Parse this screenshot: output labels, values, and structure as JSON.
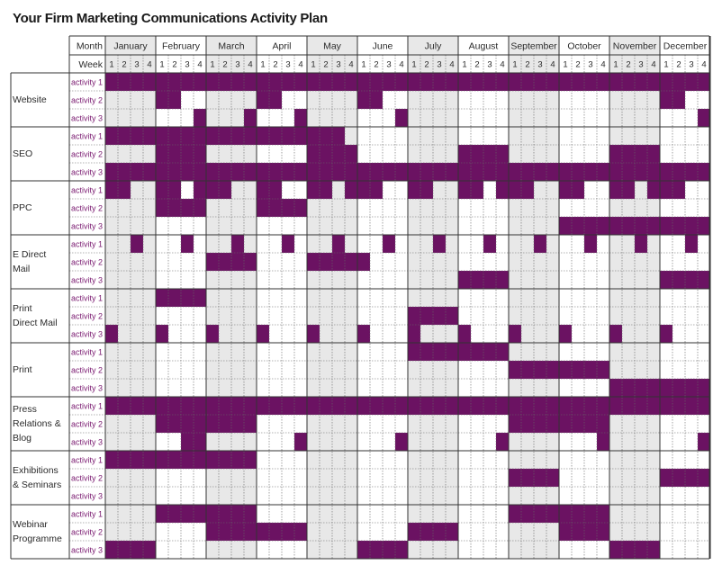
{
  "title": "Your Firm Marketing Communications Activity Plan",
  "header": {
    "month_label": "Month",
    "week_label": "Week",
    "months": [
      "January",
      "February",
      "March",
      "April",
      "May",
      "June",
      "July",
      "August",
      "September",
      "October",
      "November",
      "December"
    ],
    "weeks": [
      "1",
      "2",
      "3",
      "4"
    ]
  },
  "colors": {
    "active": "#6b1262",
    "shaded": "#e8e8e8",
    "plain": "#ffffff",
    "grid": "#666666",
    "text": "#2b2b2b",
    "activity_text": "#7a1a70"
  },
  "activity_label_prefix": "activity",
  "groups": [
    {
      "name": "Website",
      "activities": [
        {
          "label": "1",
          "weeks": "111111111111111111111111111111111111111111111111"
        },
        {
          "label": "2",
          "weeks": "000011000000110000001100000000000000000000001100"
        },
        {
          "label": "3",
          "weeks": "000000010001000100000001000000000000000000000001"
        }
      ]
    },
    {
      "name": "SEO",
      "activities": [
        {
          "label": "1",
          "weeks": "111111111111111111100000000000000000000000000000"
        },
        {
          "label": "2",
          "weeks": "000011110000000011110000000011110000000011110000"
        },
        {
          "label": "3",
          "weeks": "111111111111111111111111111111111111111111111111"
        }
      ]
    },
    {
      "name": "PPC",
      "activities": [
        {
          "label": "1",
          "weeks": "110011011100110011011100110011011100110011011100"
        },
        {
          "label": "2",
          "weeks": "000011110000111100000000000000000000000000000000"
        },
        {
          "label": "3",
          "weeks": "000000000000000000000000000000000000111111111111"
        }
      ]
    },
    {
      "name": "E Direct Mail",
      "activities": [
        {
          "label": "1",
          "weeks": "001000100010001000100010001000100010001000100010"
        },
        {
          "label": "2",
          "weeks": "000000001111000011111000000000000000000000000000"
        },
        {
          "label": "3",
          "weeks": "000000000000000000000000000011110000000000001111"
        }
      ]
    },
    {
      "name": "Print Direct Mail",
      "activities": [
        {
          "label": "1",
          "weeks": "000011110000000000000000000000000000000000000000"
        },
        {
          "label": "2",
          "weeks": "000000000000000000000000111100000000000000000000"
        },
        {
          "label": "3",
          "weeks": "100010001000100010001000100010001000100010001000"
        }
      ]
    },
    {
      "name": "Print",
      "activities": [
        {
          "label": "1",
          "weeks": "000000000000000000000000111111110000000000000000"
        },
        {
          "label": "2",
          "weeks": "000000000000000000000000000000001111111100000000"
        },
        {
          "label": "3",
          "weeks": "000000000000000000000000000000000000000011111111"
        }
      ]
    },
    {
      "name": "Press Relations & Blog",
      "activities": [
        {
          "label": "1",
          "weeks": "111111111111111111111111111111111111111111111111"
        },
        {
          "label": "2",
          "weeks": "000011111111000000000000000000001111111100000000"
        },
        {
          "label": "3",
          "weeks": "000000110000000100000001000000010000000100000001"
        }
      ]
    },
    {
      "name": "Exhibitions & Seminars",
      "activities": [
        {
          "label": "1",
          "weeks": "111111111111000000000000000000000000000000000000"
        },
        {
          "label": "2",
          "weeks": "000000000000000000000000000000001111000000001111"
        },
        {
          "label": "3",
          "weeks": "000000000000000000000000000000000000000000000000"
        }
      ]
    },
    {
      "name": "Webinar Programme",
      "activities": [
        {
          "label": "1",
          "weeks": "000011111111000000000000000000001111111100000000"
        },
        {
          "label": "2",
          "weeks": "000000001111111100000000111100000000111100000000"
        },
        {
          "label": "3",
          "weeks": "111100000000000000001111000000000000000011110000"
        }
      ]
    }
  ]
}
